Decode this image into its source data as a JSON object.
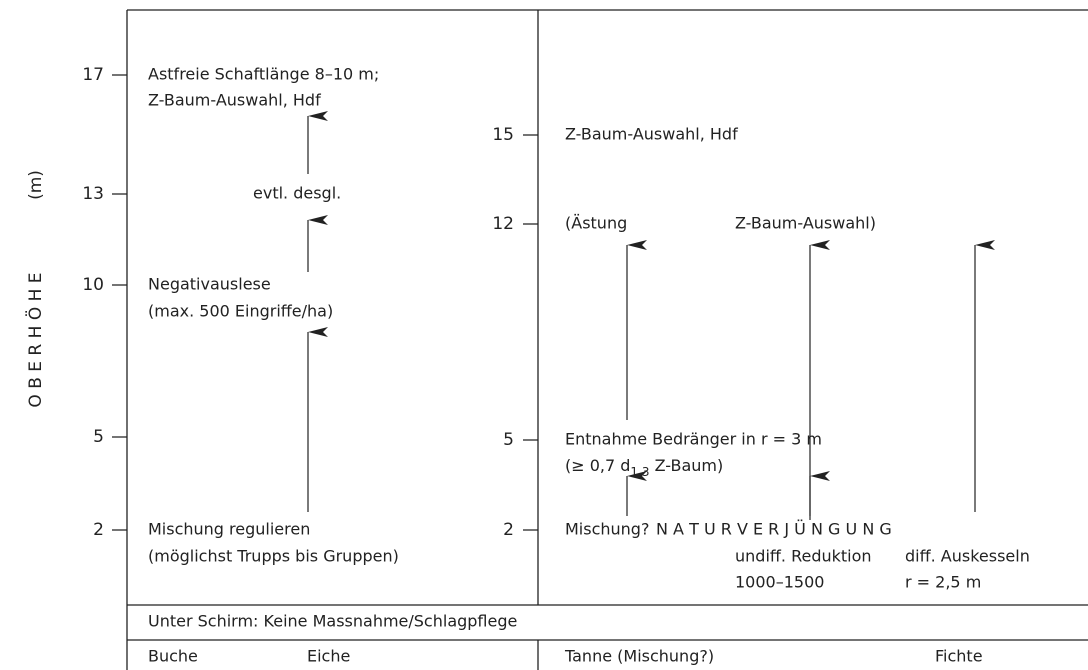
{
  "axis_label": "O B E R H Ö H E",
  "axis_unit": "(m)",
  "left": {
    "ticks": [
      "17",
      "13",
      "10",
      "5",
      "2"
    ],
    "notes": [
      [
        "Astfreie Schaftlänge 8–10 m;",
        "Z-Baum-Auswahl, Hdf"
      ],
      [
        "evtl. desgl."
      ],
      [
        "Negativauslese",
        "(max. 500 Eingriffe/ha)"
      ],
      [
        "Mischung regulieren",
        "(möglichst Trupps bis Gruppen)"
      ]
    ]
  },
  "right": {
    "ticks": [
      "15",
      "12",
      "5",
      "2"
    ],
    "notes": {
      "top": "Z-Baum-Auswahl, Hdf",
      "pruning": "(Ästung",
      "selection": "Z-Baum-Auswahl)",
      "removal": "Entnahme Bedränger in r = 3 m",
      "removal_sub": [
        "(≥ 0,7 d",
        "1,3",
        " Z-Baum)"
      ],
      "mixture": "Mischung?",
      "regeneration": "N A T U R V E R J Ü N G U N G",
      "reduction": [
        "undiff. Reduktion",
        "1000–1500"
      ],
      "thinning": [
        "diff. Auskesseln",
        "r = 2,5 m"
      ]
    }
  },
  "footer": {
    "row": "Unter Schirm: Keine Massnahme/Schlagpflege",
    "species": [
      "Buche",
      "Eiche",
      "Tanne (Mischung?)",
      "Fichte"
    ]
  }
}
